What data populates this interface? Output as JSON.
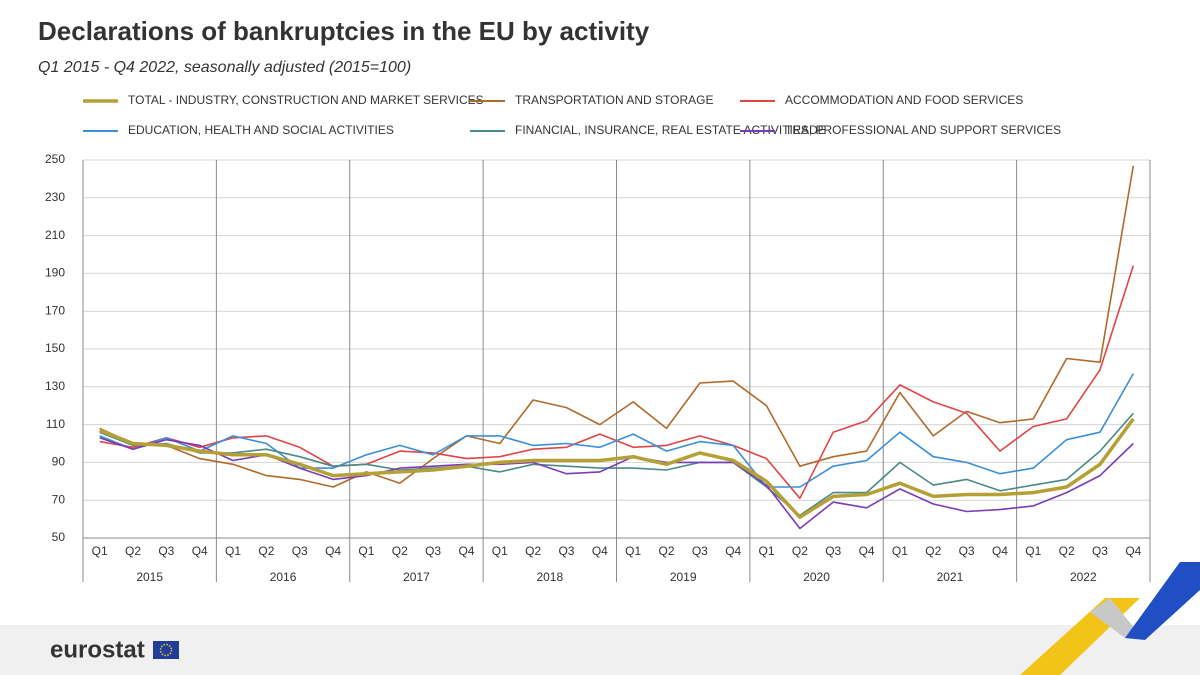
{
  "chart_data": {
    "type": "line",
    "title": "Declarations of bankruptcies in the EU by activity",
    "subtitle": "Q1 2015 - Q4 2022, seasonally adjusted  (2015=100)",
    "brand": "eurostat",
    "categories": [
      "Q1",
      "Q2",
      "Q3",
      "Q4",
      "Q1",
      "Q2",
      "Q3",
      "Q4",
      "Q1",
      "Q2",
      "Q3",
      "Q4",
      "Q1",
      "Q2",
      "Q3",
      "Q4",
      "Q1",
      "Q2",
      "Q3",
      "Q4",
      "Q1",
      "Q2",
      "Q3",
      "Q4",
      "Q1",
      "Q2",
      "Q3",
      "Q4",
      "Q1",
      "Q2",
      "Q3",
      "Q4"
    ],
    "years": [
      "2015",
      "2016",
      "2017",
      "2018",
      "2019",
      "2020",
      "2021",
      "2022"
    ],
    "ylim": [
      50,
      250
    ],
    "yticks": [
      50,
      70,
      90,
      110,
      130,
      150,
      170,
      190,
      210,
      230,
      250
    ],
    "grid": true,
    "series": [
      {
        "name": "TOTAL - INDUSTRY, CONSTRUCTION AND MARKET SERVICES",
        "color": "#b5a036",
        "width": 3.5,
        "values": [
          107,
          100,
          99,
          96,
          94,
          94,
          89,
          83,
          84,
          85,
          86,
          88,
          90,
          91,
          91,
          91,
          93,
          89,
          95,
          91,
          80,
          61,
          72,
          73,
          79,
          72,
          73,
          73,
          74,
          77,
          89,
          113
        ]
      },
      {
        "name": "TRANSPORTATION AND STORAGE",
        "color": "#b06a2a",
        "width": 1.6,
        "values": [
          108,
          100,
          99,
          92,
          89,
          83,
          81,
          77,
          85,
          79,
          92,
          104,
          100,
          123,
          119,
          110,
          122,
          108,
          132,
          133,
          120,
          88,
          93,
          96,
          127,
          104,
          117,
          111,
          113,
          145,
          143,
          247
        ]
      },
      {
        "name": "ACCOMMODATION AND FOOD SERVICES",
        "color": "#e04545",
        "width": 1.6,
        "values": [
          101,
          98,
          103,
          98,
          103,
          104,
          98,
          88,
          89,
          96,
          95,
          92,
          93,
          97,
          98,
          105,
          98,
          99,
          104,
          99,
          92,
          71,
          106,
          112,
          131,
          122,
          116,
          96,
          109,
          113,
          139,
          194
        ]
      },
      {
        "name": "EDUCATION,  HEALTH AND SOCIAL ACTIVITIES",
        "color": "#3a8fd8",
        "width": 1.6,
        "values": [
          104,
          97,
          103,
          96,
          104,
          100,
          87,
          87,
          94,
          99,
          94,
          104,
          104,
          99,
          100,
          98,
          105,
          96,
          101,
          99,
          77,
          77,
          88,
          91,
          106,
          93,
          90,
          84,
          87,
          102,
          106,
          137
        ]
      },
      {
        "name": "FINANCIAL, INSURANCE, REAL ESTATE ACTIVITIES; PROFESSIONAL AND SUPPORT SERVICES",
        "color": "#4a8a88",
        "width": 1.6,
        "values": [
          106,
          99,
          100,
          95,
          95,
          97,
          93,
          88,
          89,
          86,
          87,
          88,
          85,
          89,
          88,
          87,
          87,
          86,
          90,
          90,
          77,
          62,
          74,
          74,
          90,
          78,
          81,
          75,
          78,
          81,
          96,
          116
        ]
      },
      {
        "name": "TRADE",
        "color": "#7a3cb8",
        "width": 1.6,
        "values": [
          103,
          97,
          102,
          99,
          91,
          94,
          87,
          81,
          83,
          87,
          88,
          89,
          89,
          90,
          84,
          85,
          93,
          90,
          90,
          90,
          78,
          55,
          69,
          66,
          76,
          68,
          64,
          65,
          67,
          74,
          83,
          100
        ]
      }
    ]
  }
}
